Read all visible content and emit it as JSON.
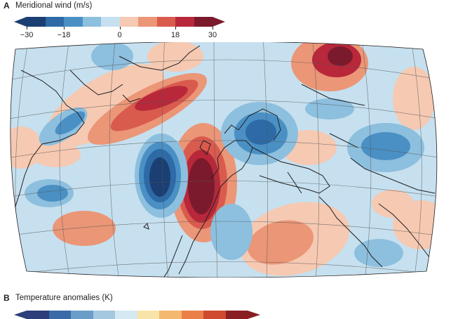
{
  "panel_a": {
    "label": "A",
    "title": "Meridional wind (m/s)",
    "colorbar": {
      "colors": [
        "#1b3f73",
        "#2d6aa6",
        "#4a90c4",
        "#8dbfde",
        "#c6e0ef",
        "#f6c9b2",
        "#eb9677",
        "#d95b4e",
        "#b8283a",
        "#7b1a2c"
      ],
      "ticks": [
        {
          "label": "−30",
          "value": -30
        },
        {
          "label": "−18",
          "value": -18
        },
        {
          "label": "0",
          "value": 0
        },
        {
          "label": "18",
          "value": 18
        },
        {
          "label": "30",
          "value": 30
        }
      ],
      "range": [
        -30,
        30
      ]
    }
  },
  "panel_b": {
    "label": "B",
    "title": "Temperature anomalies (K)",
    "colorbar": {
      "colors": [
        "#2c3f7a",
        "#3b6aa8",
        "#6b9dc9",
        "#a4c8e0",
        "#d6e8f1",
        "#f8e3a8",
        "#f5b870",
        "#ea8048",
        "#cf4a2f",
        "#8a1f23"
      ]
    }
  },
  "map": {
    "projection": "curved-graticule",
    "ocean_color": "#c6e0ef",
    "coastline_color": "#231f20",
    "graticule_color": "#555555"
  }
}
